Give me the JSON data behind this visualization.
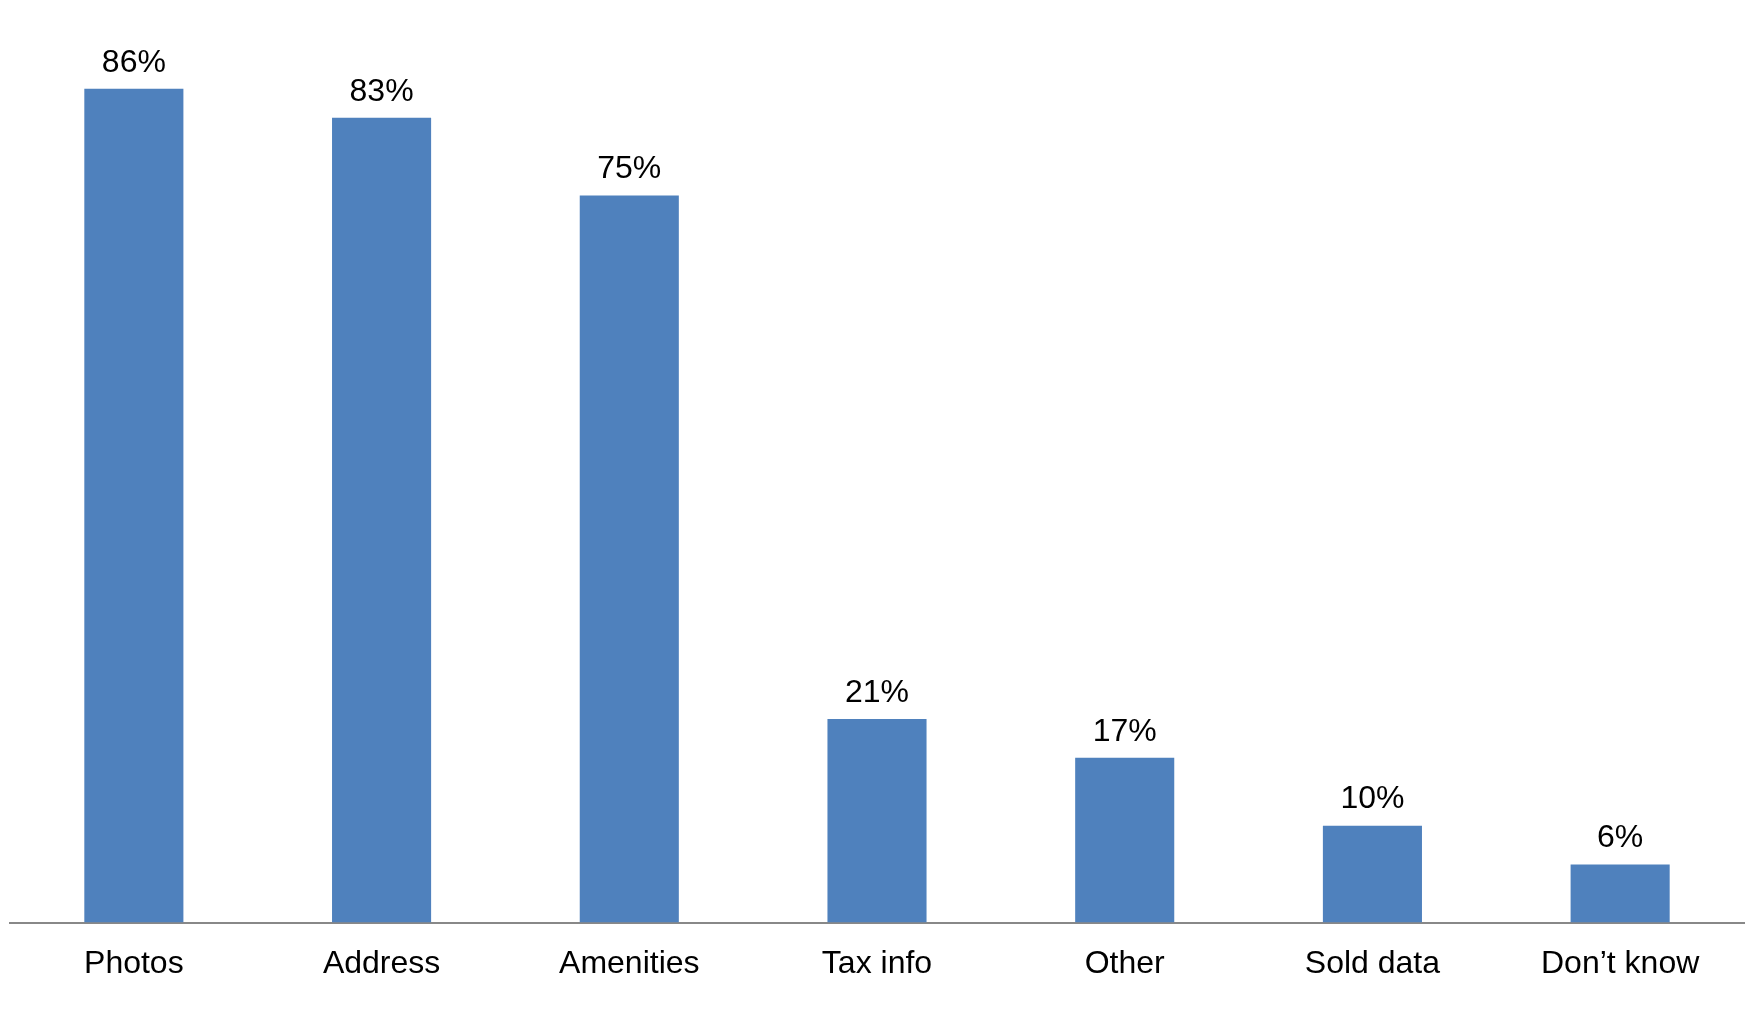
{
  "chart_data": {
    "type": "bar",
    "categories": [
      "Photos",
      "Address",
      "Amenities",
      "Tax info",
      "Other",
      "Sold data",
      "Don’t know"
    ],
    "values": [
      86,
      83,
      75,
      21,
      17,
      10,
      6
    ],
    "value_labels": [
      "86%",
      "83%",
      "75%",
      "21%",
      "17%",
      "10%",
      "6%"
    ],
    "color": "#4f81bd",
    "grid": false,
    "legend": false,
    "tick_labels": "x"
  }
}
